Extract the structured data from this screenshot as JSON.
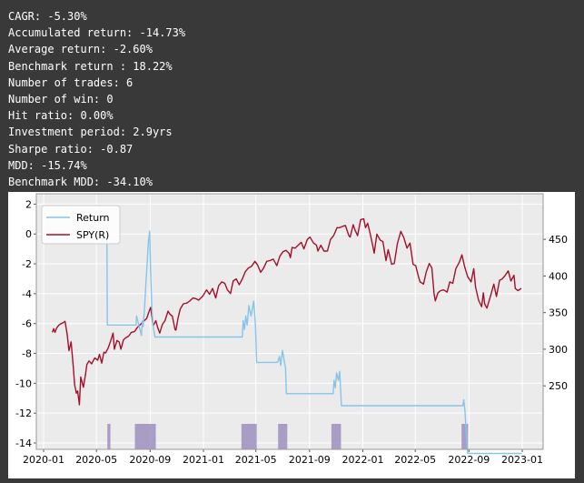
{
  "stats": [
    "CAGR: -5.30%",
    "Accumulated return: -14.73%",
    "Average return: -2.60%",
    "Benchmark return : 18.22%",
    "Number of trades: 6",
    "Number of win: 0",
    "Hit ratio: 0.00%",
    "Investment period: 2.9yrs",
    "Sharpe ratio: -0.87",
    "MDD: -15.74%",
    "Benchmark MDD: -34.10%"
  ],
  "chart_data": {
    "type": "line",
    "x_ticks": [
      "2020-01",
      "2020-05",
      "2020-09",
      "2021-01",
      "2021-05",
      "2021-09",
      "2022-01",
      "2022-05",
      "2022-09",
      "2023-01"
    ],
    "y_left_ticks": [
      "2",
      "0",
      "-2",
      "-4",
      "-6",
      "-8",
      "-10",
      "-12",
      "-14"
    ],
    "y_right_ticks": [
      "450",
      "400",
      "350",
      "300",
      "250"
    ],
    "ylim_left": [
      -15.3,
      2.2
    ],
    "ylim_right": [
      220,
      485
    ],
    "grid": true,
    "legend_position": "top-left",
    "colors": {
      "return": "#87c4e7",
      "spy": "#a50f2c",
      "shade": "#9e8fbf"
    },
    "series": [
      {
        "name": "Return",
        "axis": "left",
        "points": [
          [
            "2020-05-25",
            0
          ],
          [
            "2020-05-26",
            -6.1
          ],
          [
            "2020-07-31",
            -6.1
          ],
          [
            "2020-08-01",
            -5.5
          ],
          [
            "2020-08-12",
            -6.8
          ],
          [
            "2020-08-14",
            -5.8
          ],
          [
            "2020-08-16",
            -6.2
          ],
          [
            "2020-08-19",
            -5.0
          ],
          [
            "2020-08-22",
            -3.5
          ],
          [
            "2020-08-25",
            -2.0
          ],
          [
            "2020-08-28",
            -0.5
          ],
          [
            "2020-08-31",
            0.2
          ],
          [
            "2020-09-02",
            -2.5
          ],
          [
            "2020-09-05",
            -5.0
          ],
          [
            "2020-09-08",
            -6.2
          ],
          [
            "2020-09-12",
            -6.9
          ],
          [
            "2020-09-15",
            -6.9
          ],
          [
            "2021-03-31",
            -6.9
          ],
          [
            "2021-04-02",
            -5.8
          ],
          [
            "2021-04-05",
            -6.4
          ],
          [
            "2021-04-08",
            -5.5
          ],
          [
            "2021-04-11",
            -6.1
          ],
          [
            "2021-04-15",
            -4.8
          ],
          [
            "2021-04-20",
            -5.5
          ],
          [
            "2021-04-26",
            -4.5
          ],
          [
            "2021-04-30",
            -6.0
          ],
          [
            "2021-05-03",
            -8.6
          ],
          [
            "2021-06-20",
            -8.6
          ],
          [
            "2021-06-24",
            -8.2
          ],
          [
            "2021-06-27",
            -8.8
          ],
          [
            "2021-07-01",
            -7.8
          ],
          [
            "2021-07-05",
            -8.5
          ],
          [
            "2021-07-08",
            -9.0
          ],
          [
            "2021-07-10",
            -10.7
          ],
          [
            "2021-10-25",
            -10.7
          ],
          [
            "2021-10-27",
            -9.8
          ],
          [
            "2021-10-30",
            -10.3
          ],
          [
            "2021-11-02",
            -9.3
          ],
          [
            "2021-11-06",
            -9.8
          ],
          [
            "2021-11-09",
            -9.2
          ],
          [
            "2021-11-13",
            -11.5
          ],
          [
            "2022-08-18",
            -11.5
          ],
          [
            "2022-08-20",
            -11.1
          ],
          [
            "2022-08-23",
            -11.9
          ],
          [
            "2022-08-25",
            -13.0
          ],
          [
            "2022-08-29",
            -14.7
          ],
          [
            "2022-12-31",
            -14.7
          ]
        ]
      },
      {
        "name": "SPY(R)",
        "axis": "right",
        "points": [
          [
            "2020-01-21",
            323
          ],
          [
            "2020-01-24",
            328
          ],
          [
            "2020-01-27",
            323
          ],
          [
            "2020-01-31",
            329
          ],
          [
            "2020-02-05",
            333
          ],
          [
            "2020-02-10",
            335
          ],
          [
            "2020-02-14",
            336
          ],
          [
            "2020-02-19",
            338
          ],
          [
            "2020-02-24",
            320
          ],
          [
            "2020-02-28",
            298
          ],
          [
            "2020-03-04",
            310
          ],
          [
            "2020-03-09",
            276
          ],
          [
            "2020-03-12",
            252
          ],
          [
            "2020-03-16",
            240
          ],
          [
            "2020-03-19",
            243
          ],
          [
            "2020-03-23",
            224
          ],
          [
            "2020-03-26",
            262
          ],
          [
            "2020-04-01",
            248
          ],
          [
            "2020-04-06",
            266
          ],
          [
            "2020-04-09",
            279
          ],
          [
            "2020-04-14",
            284
          ],
          [
            "2020-04-20",
            280
          ],
          [
            "2020-04-27",
            288
          ],
          [
            "2020-05-04",
            285
          ],
          [
            "2020-05-08",
            293
          ],
          [
            "2020-05-13",
            281
          ],
          [
            "2020-05-18",
            296
          ],
          [
            "2020-05-22",
            295
          ],
          [
            "2020-05-28",
            302
          ],
          [
            "2020-06-03",
            312
          ],
          [
            "2020-06-08",
            322
          ],
          [
            "2020-06-11",
            300
          ],
          [
            "2020-06-17",
            312
          ],
          [
            "2020-06-22",
            310
          ],
          [
            "2020-06-26",
            300
          ],
          [
            "2020-07-02",
            313
          ],
          [
            "2020-07-08",
            316
          ],
          [
            "2020-07-14",
            318
          ],
          [
            "2020-07-20",
            323
          ],
          [
            "2020-07-27",
            324
          ],
          [
            "2020-08-03",
            330
          ],
          [
            "2020-08-10",
            334
          ],
          [
            "2020-08-17",
            338
          ],
          [
            "2020-08-24",
            342
          ],
          [
            "2020-08-28",
            349
          ],
          [
            "2020-09-02",
            357
          ],
          [
            "2020-09-08",
            332
          ],
          [
            "2020-09-14",
            339
          ],
          [
            "2020-09-18",
            330
          ],
          [
            "2020-09-23",
            322
          ],
          [
            "2020-09-29",
            334
          ],
          [
            "2020-10-05",
            339
          ],
          [
            "2020-10-12",
            352
          ],
          [
            "2020-10-16",
            348
          ],
          [
            "2020-10-22",
            345
          ],
          [
            "2020-10-28",
            327
          ],
          [
            "2020-10-30",
            326
          ],
          [
            "2020-11-04",
            343
          ],
          [
            "2020-11-09",
            355
          ],
          [
            "2020-11-16",
            362
          ],
          [
            "2020-11-24",
            363
          ],
          [
            "2020-12-01",
            366
          ],
          [
            "2020-12-08",
            370
          ],
          [
            "2020-12-15",
            369
          ],
          [
            "2020-12-21",
            367
          ],
          [
            "2020-12-31",
            373
          ],
          [
            "2021-01-08",
            381
          ],
          [
            "2021-01-15",
            375
          ],
          [
            "2021-01-22",
            383
          ],
          [
            "2021-01-29",
            370
          ],
          [
            "2021-02-05",
            387
          ],
          [
            "2021-02-12",
            392
          ],
          [
            "2021-02-19",
            390
          ],
          [
            "2021-02-25",
            381
          ],
          [
            "2021-03-04",
            376
          ],
          [
            "2021-03-10",
            393
          ],
          [
            "2021-03-17",
            396
          ],
          [
            "2021-03-24",
            388
          ],
          [
            "2021-03-31",
            396
          ],
          [
            "2021-04-07",
            406
          ],
          [
            "2021-04-14",
            411
          ],
          [
            "2021-04-21",
            413
          ],
          [
            "2021-04-29",
            420
          ],
          [
            "2021-05-05",
            415
          ],
          [
            "2021-05-12",
            405
          ],
          [
            "2021-05-19",
            411
          ],
          [
            "2021-05-26",
            420
          ],
          [
            "2021-06-02",
            421
          ],
          [
            "2021-06-10",
            423
          ],
          [
            "2021-06-18",
            414
          ],
          [
            "2021-06-25",
            427
          ],
          [
            "2021-07-02",
            433
          ],
          [
            "2021-07-09",
            435
          ],
          [
            "2021-07-16",
            431
          ],
          [
            "2021-07-19",
            425
          ],
          [
            "2021-07-23",
            439
          ],
          [
            "2021-07-30",
            438
          ],
          [
            "2021-08-06",
            442
          ],
          [
            "2021-08-13",
            446
          ],
          [
            "2021-08-19",
            437
          ],
          [
            "2021-08-27",
            450
          ],
          [
            "2021-09-02",
            453
          ],
          [
            "2021-09-10",
            445
          ],
          [
            "2021-09-17",
            442
          ],
          [
            "2021-09-20",
            434
          ],
          [
            "2021-09-27",
            442
          ],
          [
            "2021-10-04",
            434
          ],
          [
            "2021-10-12",
            434
          ],
          [
            "2021-10-19",
            450
          ],
          [
            "2021-10-26",
            455
          ],
          [
            "2021-11-03",
            466
          ],
          [
            "2021-11-09",
            466
          ],
          [
            "2021-11-16",
            468
          ],
          [
            "2021-11-22",
            469
          ],
          [
            "2021-11-30",
            455
          ],
          [
            "2021-12-03",
            453
          ],
          [
            "2021-12-10",
            470
          ],
          [
            "2021-12-14",
            463
          ],
          [
            "2021-12-20",
            455
          ],
          [
            "2021-12-27",
            477
          ],
          [
            "2022-01-03",
            478
          ],
          [
            "2022-01-07",
            466
          ],
          [
            "2022-01-12",
            472
          ],
          [
            "2022-01-18",
            457
          ],
          [
            "2022-01-24",
            440
          ],
          [
            "2022-01-27",
            431
          ],
          [
            "2022-02-02",
            457
          ],
          [
            "2022-02-10",
            449
          ],
          [
            "2022-02-16",
            447
          ],
          [
            "2022-02-23",
            421
          ],
          [
            "2022-02-28",
            436
          ],
          [
            "2022-03-08",
            416
          ],
          [
            "2022-03-14",
            417
          ],
          [
            "2022-03-21",
            444
          ],
          [
            "2022-03-29",
            461
          ],
          [
            "2022-04-05",
            452
          ],
          [
            "2022-04-12",
            438
          ],
          [
            "2022-04-19",
            445
          ],
          [
            "2022-04-26",
            416
          ],
          [
            "2022-05-02",
            414
          ],
          [
            "2022-05-09",
            398
          ],
          [
            "2022-05-12",
            392
          ],
          [
            "2022-05-20",
            389
          ],
          [
            "2022-05-26",
            405
          ],
          [
            "2022-06-02",
            417
          ],
          [
            "2022-06-08",
            411
          ],
          [
            "2022-06-13",
            376
          ],
          [
            "2022-06-16",
            366
          ],
          [
            "2022-06-22",
            377
          ],
          [
            "2022-06-28",
            380
          ],
          [
            "2022-07-05",
            381
          ],
          [
            "2022-07-13",
            378
          ],
          [
            "2022-07-19",
            392
          ],
          [
            "2022-07-26",
            390
          ],
          [
            "2022-08-02",
            410
          ],
          [
            "2022-08-10",
            419
          ],
          [
            "2022-08-16",
            429
          ],
          [
            "2022-08-22",
            413
          ],
          [
            "2022-08-29",
            399
          ],
          [
            "2022-09-06",
            392
          ],
          [
            "2022-09-12",
            410
          ],
          [
            "2022-09-16",
            385
          ],
          [
            "2022-09-23",
            367
          ],
          [
            "2022-09-30",
            358
          ],
          [
            "2022-10-04",
            377
          ],
          [
            "2022-10-07",
            362
          ],
          [
            "2022-10-12",
            356
          ],
          [
            "2022-10-17",
            366
          ],
          [
            "2022-10-21",
            374
          ],
          [
            "2022-10-28",
            389
          ],
          [
            "2022-11-03",
            372
          ],
          [
            "2022-11-10",
            394
          ],
          [
            "2022-11-16",
            396
          ],
          [
            "2022-11-22",
            400
          ],
          [
            "2022-11-30",
            407
          ],
          [
            "2022-12-06",
            393
          ],
          [
            "2022-12-13",
            401
          ],
          [
            "2022-12-16",
            383
          ],
          [
            "2022-12-22",
            380
          ],
          [
            "2022-12-30",
            383
          ]
        ]
      }
    ],
    "shaded_periods": [
      [
        "2020-05-26",
        "2020-06-02"
      ],
      [
        "2020-07-28",
        "2020-09-14"
      ],
      [
        "2021-03-29",
        "2021-05-03"
      ],
      [
        "2021-06-21",
        "2021-07-12"
      ],
      [
        "2021-10-21",
        "2021-11-12"
      ],
      [
        "2022-08-15",
        "2022-08-30"
      ]
    ]
  }
}
